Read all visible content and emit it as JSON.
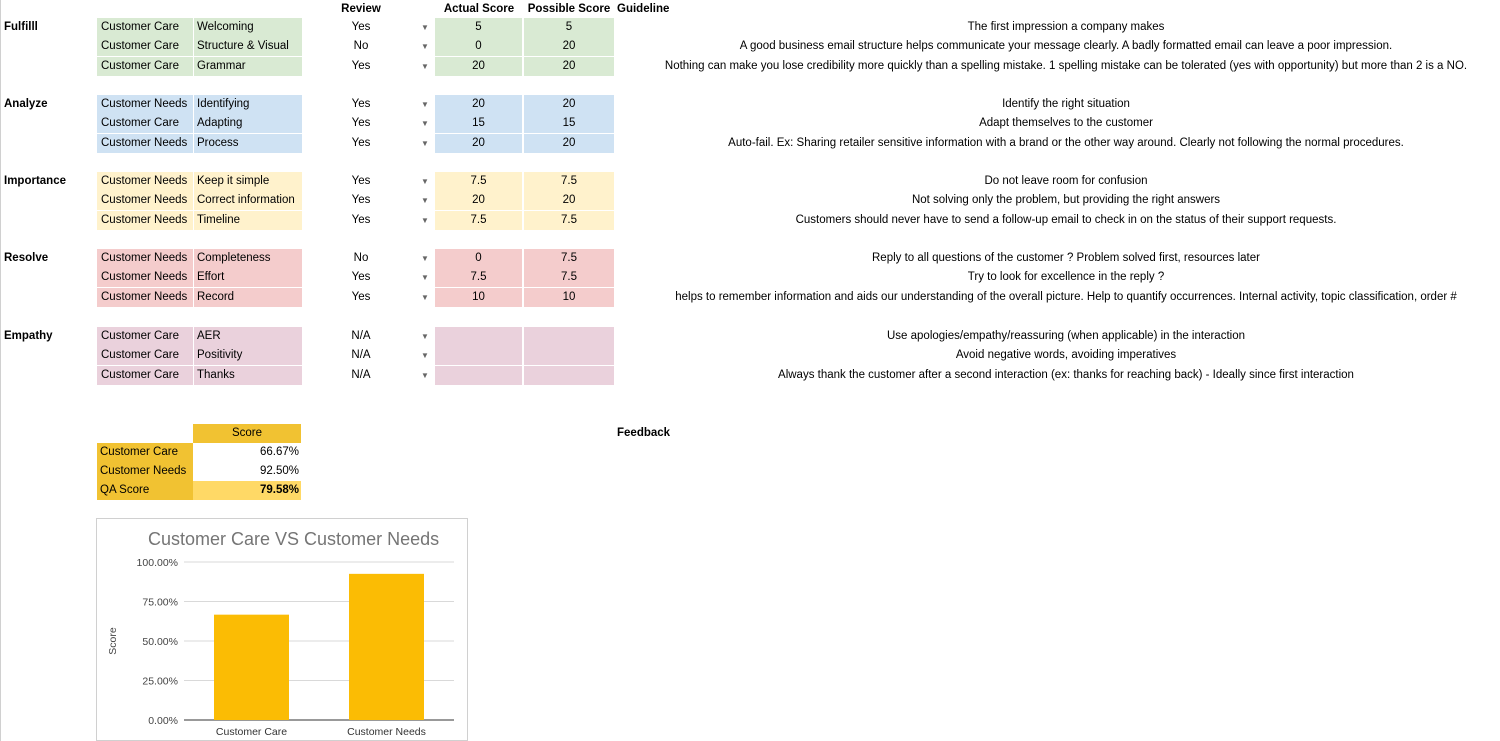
{
  "headers": {
    "review": "Review",
    "actual_score": "Actual Score",
    "possible_score": "Possible Score",
    "guideline": "Guideline"
  },
  "sections": [
    {
      "category": "Fulfilll",
      "color": "#d9ead3",
      "rows": [
        {
          "sub": "Customer Care",
          "criterion": "Welcoming",
          "review": "Yes",
          "actual": "5",
          "possible": "5",
          "guideline": "The first impression a company makes"
        },
        {
          "sub": "Customer Care",
          "criterion": "Structure & Visual",
          "review": "No",
          "actual": "0",
          "possible": "20",
          "guideline": "A good business email structure helps communicate your message clearly. A badly formatted email can leave a poor impression."
        },
        {
          "sub": "Customer Care",
          "criterion": "Grammar",
          "review": "Yes",
          "actual": "20",
          "possible": "20",
          "guideline": "Nothing can make you lose credibility more quickly than a spelling mistake. 1 spelling mistake can be tolerated (yes with opportunity) but more than 2 is a NO."
        }
      ]
    },
    {
      "category": "Analyze",
      "color": "#cfe2f3",
      "rows": [
        {
          "sub": "Customer Needs",
          "criterion": "Identifying",
          "review": "Yes",
          "actual": "20",
          "possible": "20",
          "guideline": "Identify the right situation"
        },
        {
          "sub": "Customer Care",
          "criterion": "Adapting",
          "review": "Yes",
          "actual": "15",
          "possible": "15",
          "guideline": "Adapt themselves to the customer"
        },
        {
          "sub": "Customer Needs",
          "criterion": "Process",
          "review": "Yes",
          "actual": "20",
          "possible": "20",
          "guideline": "Auto-fail. Ex: Sharing retailer sensitive information with a brand or the other way around. Clearly not following the normal procedures."
        }
      ]
    },
    {
      "category": "Importance",
      "color": "#fff2cc",
      "rows": [
        {
          "sub": "Customer Needs",
          "criterion": "Keep it simple",
          "review": "Yes",
          "actual": "7.5",
          "possible": "7.5",
          "guideline": "Do not leave room for confusion"
        },
        {
          "sub": "Customer Needs",
          "criterion": "Correct information",
          "review": "Yes",
          "actual": "20",
          "possible": "20",
          "guideline": "Not solving only the problem, but providing the right answers"
        },
        {
          "sub": "Customer Needs",
          "criterion": "Timeline",
          "review": "Yes",
          "actual": "7.5",
          "possible": "7.5",
          "guideline": "Customers should never have to send a follow-up email to check in on the status of their support requests."
        }
      ]
    },
    {
      "category": "Resolve",
      "color": "#f4cccc",
      "rows": [
        {
          "sub": "Customer Needs",
          "criterion": "Completeness",
          "review": "No",
          "actual": "0",
          "possible": "7.5",
          "guideline": "Reply to all questions of the customer ? Problem solved first, resources later"
        },
        {
          "sub": "Customer Needs",
          "criterion": "Effort",
          "review": "Yes",
          "actual": "7.5",
          "possible": "7.5",
          "guideline": "Try to look for excellence in the reply ?"
        },
        {
          "sub": "Customer Needs",
          "criterion": "Record",
          "review": "Yes",
          "actual": "10",
          "possible": "10",
          "guideline": "helps to remember information and aids our understanding of the overall picture. Help to quantify occurrences. Internal activity, topic classification, order #"
        }
      ]
    },
    {
      "category": "Empathy",
      "color": "#ead1dc",
      "rows": [
        {
          "sub": "Customer Care",
          "criterion": "AER",
          "review": "N/A",
          "actual": "",
          "possible": "",
          "guideline": "Use apologies/empathy/reassuring (when applicable) in the interaction"
        },
        {
          "sub": "Customer Care",
          "criterion": "Positivity",
          "review": "N/A",
          "actual": "",
          "possible": "",
          "guideline": "Avoid negative words, avoiding imperatives"
        },
        {
          "sub": "Customer Care",
          "criterion": "Thanks",
          "review": "N/A",
          "actual": "",
          "possible": "",
          "guideline": "Always thank the customer after a second interaction (ex: thanks for reaching back) - Ideally since first interaction"
        }
      ]
    }
  ],
  "dropdown_icon": "caret-down-icon",
  "summary": {
    "header": "Score",
    "rows": [
      {
        "label": "Customer Care",
        "value": "66.67%"
      },
      {
        "label": "Customer Needs",
        "value": "92.50%"
      },
      {
        "label": "QA Score",
        "value": "79.58%"
      }
    ]
  },
  "feedback_label": "Feedback",
  "chart_data": {
    "type": "bar",
    "title": "Customer Care VS Customer Needs",
    "ylabel": "Score",
    "xlabel": "",
    "categories": [
      "Customer Care",
      "Customer Needs"
    ],
    "values": [
      66.67,
      92.5
    ],
    "ylim": [
      0,
      100
    ],
    "yticks": [
      "0.00%",
      "25.00%",
      "50.00%",
      "75.00%",
      "100.00%"
    ],
    "grid": true,
    "bar_color": "#fbbc04"
  }
}
